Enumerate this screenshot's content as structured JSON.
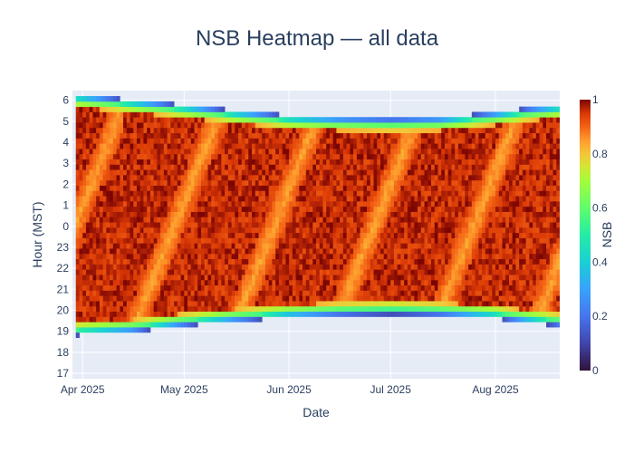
{
  "chart_data": {
    "type": "heatmap",
    "title": "NSB Heatmap — all data",
    "xlabel": "Date",
    "ylabel": "Hour (MST)",
    "x_range": [
      "2025-03-29",
      "2025-08-20"
    ],
    "x_ticks": [
      {
        "date": "2025-04-01",
        "label": "Apr 2025"
      },
      {
        "date": "2025-05-01",
        "label": "May 2025"
      },
      {
        "date": "2025-06-01",
        "label": "Jun 2025"
      },
      {
        "date": "2025-07-01",
        "label": "Jul 2025"
      },
      {
        "date": "2025-08-01",
        "label": "Aug 2025"
      }
    ],
    "y_ticks": [
      "17",
      "18",
      "19",
      "20",
      "21",
      "22",
      "23",
      "0",
      "1",
      "2",
      "3",
      "4",
      "5",
      "6"
    ],
    "colorbar": {
      "title": "NSB",
      "min": 0,
      "max": 1,
      "tick_values": [
        0,
        0.2,
        0.4,
        0.6,
        0.8,
        1
      ],
      "tick_labels": [
        "0",
        "0.2",
        "0.4",
        "0.6",
        "0.8",
        "1"
      ],
      "colorscale": "Turbo"
    },
    "data_window": {
      "dates": [
        "2025-03-30",
        "2025-04-15",
        "2025-05-01",
        "2025-05-15",
        "2025-06-01",
        "2025-06-15",
        "2025-07-01",
        "2025-07-15",
        "2025-07-31",
        "2025-08-10",
        "2025-08-19"
      ],
      "evening_start_hour": [
        18.75,
        18.9,
        19.2,
        19.4,
        19.6,
        19.7,
        19.75,
        19.7,
        19.55,
        19.35,
        19.2
      ],
      "morning_end_hour": [
        6.2,
        5.95,
        5.7,
        5.45,
        5.2,
        5.1,
        5.05,
        5.1,
        5.35,
        5.55,
        5.7
      ]
    },
    "grid": true,
    "legend": "none"
  }
}
